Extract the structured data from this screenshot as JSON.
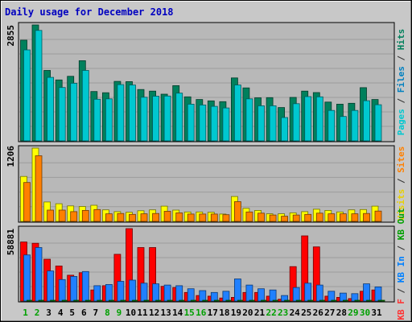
{
  "chart_data": {
    "type": "bar",
    "title": "Daily usage for December 2018",
    "categories": [
      "1",
      "2",
      "3",
      "4",
      "5",
      "6",
      "7",
      "8",
      "9",
      "10",
      "11",
      "12",
      "13",
      "14",
      "15",
      "16",
      "17",
      "18",
      "19",
      "20",
      "21",
      "22",
      "23",
      "24",
      "25",
      "26",
      "27",
      "28",
      "29",
      "30",
      "31"
    ],
    "weekend_days": [
      "1",
      "2",
      "8",
      "9",
      "15",
      "16",
      "22",
      "23",
      "29",
      "30"
    ],
    "grid": true,
    "legend_placement": "right",
    "panels": [
      {
        "max_label": "2855",
        "ylim": [
          0,
          2855
        ],
        "axis_legend": [
          {
            "text": "Pages",
            "color": "#00c8d0"
          },
          {
            "text": " / ",
            "color": "#303030"
          },
          {
            "text": "Files",
            "color": "#0080c0"
          },
          {
            "text": " / ",
            "color": "#303030"
          },
          {
            "text": "Hits",
            "color": "#00805c"
          }
        ],
        "series": [
          {
            "name": "Hits",
            "color": "#00805c",
            "values": [
              2480,
              2855,
              1735,
              1500,
              1590,
              1975,
              1215,
              1185,
              1465,
              1460,
              1265,
              1225,
              1150,
              1360,
              1085,
              1020,
              985,
              965,
              1550,
              1305,
              1060,
              1065,
              820,
              1070,
              1225,
              1190,
              955,
              905,
              925,
              1310,
              1020
            ]
          },
          {
            "name": "Files",
            "color": "#00c8d0",
            "values": [
              2240,
              2720,
              1565,
              1315,
              1420,
              1735,
              1025,
              1035,
              1385,
              1375,
              1075,
              1100,
              1105,
              1175,
              905,
              885,
              850,
              810,
              1375,
              1035,
              865,
              865,
              575,
              915,
              1090,
              1085,
              750,
              600,
              750,
              990,
              890
            ]
          }
        ]
      },
      {
        "max_label": "1206",
        "ylim": [
          0,
          1206
        ],
        "axis_legend": [
          {
            "text": "Visits",
            "color": "#e8d000"
          },
          {
            "text": " / ",
            "color": "#303030"
          },
          {
            "text": "Sites",
            "color": "#ff8000"
          }
        ],
        "series": [
          {
            "name": "Visits",
            "color": "#ffff00",
            "values": [
              740,
              1206,
              320,
              290,
              255,
              245,
              265,
              190,
              160,
              150,
              175,
              190,
              250,
              185,
              155,
              155,
              150,
              120,
              410,
              215,
              180,
              125,
              125,
              140,
              160,
              200,
              180,
              155,
              190,
              195,
              250
            ]
          },
          {
            "name": "Sites",
            "color": "#ff8000",
            "values": [
              640,
              1080,
              185,
              185,
              160,
              180,
              195,
              125,
              130,
              115,
              125,
              130,
              165,
              140,
              120,
              120,
              120,
              110,
              325,
              155,
              135,
              105,
              85,
              105,
              115,
              135,
              125,
              125,
              125,
              130,
              170
            ]
          }
        ]
      },
      {
        "max_label": "58881",
        "ylim": [
          0,
          58881
        ],
        "axis_legend": [
          {
            "text": "KB F",
            "color": "#ff3030"
          },
          {
            "text": " / ",
            "color": "#303030"
          },
          {
            "text": "KB In",
            "color": "#0080ff"
          },
          {
            "text": " / ",
            "color": "#303030"
          },
          {
            "text": "KB Out",
            "color": "#00a000"
          }
        ],
        "series": [
          {
            "name": "KB F",
            "color": "#ff0000",
            "values": [
              48000,
              47000,
              34000,
              28500,
              21000,
              23000,
              9000,
              12500,
              38000,
              58881,
              43500,
              43500,
              12000,
              11000,
              7000,
              4500,
              4000,
              2500,
              3000,
              7000,
              7000,
              4000,
              1500,
              28000,
              53000,
              44000,
              4000,
              3000,
              2000,
              8000,
              9000
            ]
          },
          {
            "name": "KB In",
            "color": "#2080ff",
            "values": [
              37500,
              43500,
              24500,
              17500,
              20000,
              24000,
              12500,
              13500,
              16000,
              17000,
              14500,
              14000,
              13000,
              12500,
              10000,
              8500,
              7000,
              8000,
              18000,
              13000,
              10000,
              9000,
              4500,
              11000,
              14500,
              13000,
              8000,
              6500,
              6000,
              14000,
              11500
            ]
          },
          {
            "name": "KB Out",
            "color": "#00a000",
            "values": [
              250,
              300,
              250,
              200,
              200,
              200,
              150,
              150,
              200,
              200,
              200,
              200,
              150,
              150,
              150,
              150,
              150,
              150,
              200,
              150,
              150,
              150,
              100,
              150,
              200,
              200,
              150,
              100,
              100,
              150,
              150
            ]
          }
        ]
      }
    ]
  }
}
